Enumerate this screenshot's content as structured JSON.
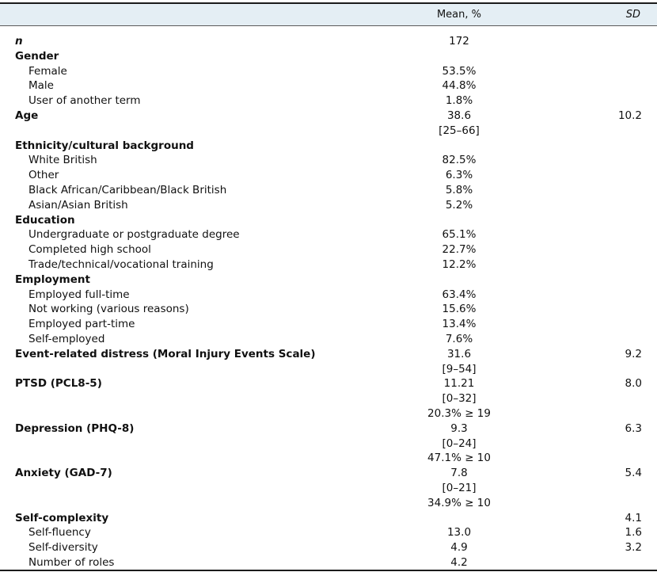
{
  "header": {
    "mean_label": "Mean, %",
    "sd_label": "SD"
  },
  "rows": [
    {
      "label": "n",
      "mean": "172",
      "sd": "",
      "style": "italic-bold",
      "indent": false
    },
    {
      "label": "Gender",
      "mean": "",
      "sd": "",
      "style": "bold",
      "indent": false
    },
    {
      "label": "Female",
      "mean": "53.5%",
      "sd": "",
      "style": "normal",
      "indent": true
    },
    {
      "label": "Male",
      "mean": "44.8%",
      "sd": "",
      "style": "normal",
      "indent": true
    },
    {
      "label": "User of another term",
      "mean": "1.8%",
      "sd": "",
      "style": "normal",
      "indent": true
    },
    {
      "label": "Age",
      "mean": "38.6",
      "sd": "10.2",
      "style": "bold",
      "indent": false
    },
    {
      "label": "",
      "mean": "[25–66]",
      "sd": "",
      "style": "normal",
      "indent": false
    },
    {
      "label": "Ethnicity/cultural background",
      "mean": "",
      "sd": "",
      "style": "bold",
      "indent": false
    },
    {
      "label": "White British",
      "mean": "82.5%",
      "sd": "",
      "style": "normal",
      "indent": true
    },
    {
      "label": "Other",
      "mean": "6.3%",
      "sd": "",
      "style": "normal",
      "indent": true
    },
    {
      "label": "Black African/Caribbean/Black British",
      "mean": "5.8%",
      "sd": "",
      "style": "normal",
      "indent": true
    },
    {
      "label": "Asian/Asian British",
      "mean": "5.2%",
      "sd": "",
      "style": "normal",
      "indent": true
    },
    {
      "label": "Education",
      "mean": "",
      "sd": "",
      "style": "bold",
      "indent": false
    },
    {
      "label": "Undergraduate or postgraduate degree",
      "mean": "65.1%",
      "sd": "",
      "style": "normal",
      "indent": true
    },
    {
      "label": "Completed high school",
      "mean": "22.7%",
      "sd": "",
      "style": "normal",
      "indent": true
    },
    {
      "label": "Trade/technical/vocational training",
      "mean": "12.2%",
      "sd": "",
      "style": "normal",
      "indent": true
    },
    {
      "label": "Employment",
      "mean": "",
      "sd": "",
      "style": "bold",
      "indent": false
    },
    {
      "label": "Employed full-time",
      "mean": "63.4%",
      "sd": "",
      "style": "normal",
      "indent": true
    },
    {
      "label": "Not working (various reasons)",
      "mean": "15.6%",
      "sd": "",
      "style": "normal",
      "indent": true
    },
    {
      "label": "Employed part-time",
      "mean": "13.4%",
      "sd": "",
      "style": "normal",
      "indent": true
    },
    {
      "label": "Self-employed",
      "mean": "7.6%",
      "sd": "",
      "style": "normal",
      "indent": true
    },
    {
      "label": "Event-related distress (Moral Injury Events Scale)",
      "mean": "31.6",
      "sd": "9.2",
      "style": "bold",
      "indent": false
    },
    {
      "label": "",
      "mean": "[9–54]",
      "sd": "",
      "style": "normal",
      "indent": false
    },
    {
      "label": "PTSD (PCL8-5)",
      "mean": "11.21",
      "sd": "8.0",
      "style": "bold",
      "indent": false
    },
    {
      "label": "",
      "mean": "[0–32]",
      "sd": "",
      "style": "normal",
      "indent": false
    },
    {
      "label": "",
      "mean": "20.3% ≥ 19",
      "sd": "",
      "style": "normal",
      "indent": false
    },
    {
      "label": "Depression (PHQ-8)",
      "mean": "9.3",
      "sd": "6.3",
      "style": "bold",
      "indent": false
    },
    {
      "label": "",
      "mean": "[0–24]",
      "sd": "",
      "style": "normal",
      "indent": false
    },
    {
      "label": "",
      "mean": "47.1% ≥ 10",
      "sd": "",
      "style": "normal",
      "indent": false
    },
    {
      "label": "Anxiety (GAD-7)",
      "mean": "7.8",
      "sd": "5.4",
      "style": "bold",
      "indent": false
    },
    {
      "label": "",
      "mean": "[0–21]",
      "sd": "",
      "style": "normal",
      "indent": false
    },
    {
      "label": "",
      "mean": "34.9% ≥ 10",
      "sd": "",
      "style": "normal",
      "indent": false
    },
    {
      "label": "Self-complexity",
      "mean": "",
      "sd": "4.1",
      "style": "bold",
      "indent": false
    },
    {
      "label": "Self-fluency",
      "mean": "13.0",
      "sd": "1.6",
      "style": "normal",
      "indent": true
    },
    {
      "label": "Self-diversity",
      "mean": "4.9",
      "sd": "3.2",
      "style": "normal",
      "indent": true
    },
    {
      "label": "Number of roles",
      "mean": "4.2",
      "sd": "",
      "style": "normal",
      "indent": true
    }
  ]
}
